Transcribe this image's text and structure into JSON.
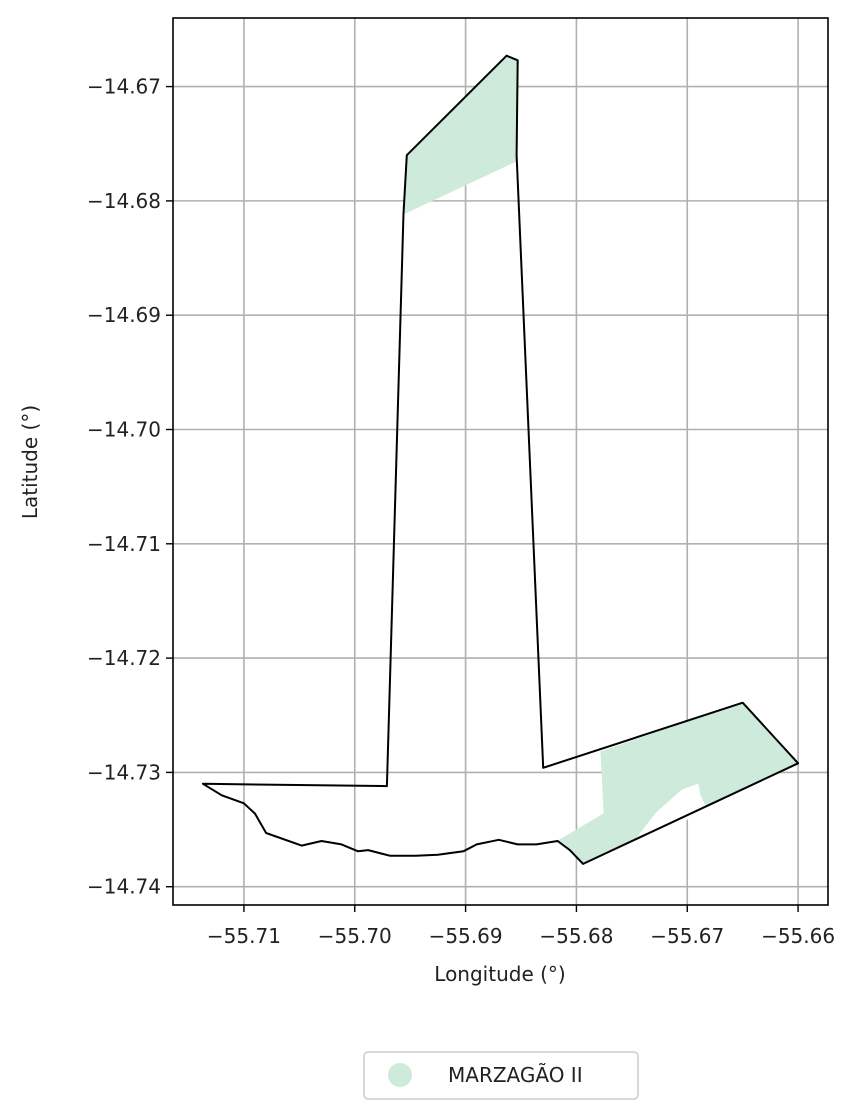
{
  "chart_data": {
    "type": "map",
    "xlabel": "Longitude (°)",
    "ylabel": "Latitude (°)",
    "xlim": [
      -55.7164,
      -55.6573
    ],
    "ylim": [
      -14.7416,
      -14.664
    ],
    "grid": true,
    "x_ticks": [
      -55.71,
      -55.7,
      -55.69,
      -55.68,
      -55.67,
      -55.66
    ],
    "x_tick_labels": [
      "−55.71",
      "−55.70",
      "−55.69",
      "−55.68",
      "−55.67",
      "−55.66"
    ],
    "y_ticks": [
      -14.67,
      -14.68,
      -14.69,
      -14.7,
      -14.71,
      -14.72,
      -14.73,
      -14.74
    ],
    "y_tick_labels": [
      "−14.67",
      "−14.68",
      "−14.69",
      "−14.70",
      "−14.71",
      "−14.72",
      "−14.73",
      "−14.74"
    ],
    "boundary": [
      [
        -55.6953,
        -14.676
      ],
      [
        -55.6863,
        -14.6673
      ],
      [
        -55.6853,
        -14.6677
      ],
      [
        -55.6854,
        -14.676
      ],
      [
        -55.683,
        -14.7296
      ],
      [
        -55.665,
        -14.7239
      ],
      [
        -55.66,
        -14.7292
      ],
      [
        -55.6794,
        -14.738
      ],
      [
        -55.6806,
        -14.7368
      ],
      [
        -55.6817,
        -14.736
      ],
      [
        -55.6836,
        -14.7363
      ],
      [
        -55.6853,
        -14.7363
      ],
      [
        -55.687,
        -14.7359
      ],
      [
        -55.689,
        -14.7363
      ],
      [
        -55.6902,
        -14.7369
      ],
      [
        -55.6925,
        -14.7372
      ],
      [
        -55.6945,
        -14.7373
      ],
      [
        -55.6968,
        -14.7373
      ],
      [
        -55.6988,
        -14.7368
      ],
      [
        -55.6997,
        -14.7369
      ],
      [
        -55.7012,
        -14.7363
      ],
      [
        -55.703,
        -14.736
      ],
      [
        -55.7048,
        -14.7364
      ],
      [
        -55.708,
        -14.7353
      ],
      [
        -55.709,
        -14.7336
      ],
      [
        -55.71,
        -14.7327
      ],
      [
        -55.712,
        -14.732
      ],
      [
        -55.7137,
        -14.731
      ],
      [
        -55.6971,
        -14.7312
      ],
      [
        -55.6956,
        -14.6811
      ],
      [
        -55.6953,
        -14.676
      ]
    ],
    "series": [
      {
        "name": "MARZAGÃO II",
        "color": "#cdeadb",
        "polygons": [
          [
            [
              -55.6953,
              -14.676
            ],
            [
              -55.6863,
              -14.6673
            ],
            [
              -55.6853,
              -14.6677
            ],
            [
              -55.6854,
              -14.6765
            ],
            [
              -55.6955,
              -14.6811
            ]
          ],
          [
            [
              -55.6778,
              -14.7282
            ],
            [
              -55.665,
              -14.7239
            ],
            [
              -55.66,
              -14.7292
            ],
            [
              -55.6794,
              -14.738
            ],
            [
              -55.6806,
              -14.7368
            ],
            [
              -55.6817,
              -14.736
            ],
            [
              -55.6775,
              -14.7336
            ]
          ],
          [
            [
              -55.6775,
              -14.7336
            ],
            [
              -55.6794,
              -14.738
            ],
            [
              -55.6745,
              -14.7356
            ]
          ]
        ],
        "holes": [
          [
            [
              -55.6745,
              -14.7356
            ],
            [
              -55.6728,
              -14.7335
            ],
            [
              -55.6705,
              -14.7315
            ],
            [
              -55.669,
              -14.731
            ],
            [
              -55.6688,
              -14.732
            ],
            [
              -55.668,
              -14.7336
            ],
            [
              -55.671,
              -14.7344
            ]
          ]
        ]
      }
    ],
    "legend": {
      "placement": "bottom-center",
      "entries": [
        {
          "label": "MARZAGÃO II",
          "color": "#cdeadb"
        }
      ]
    }
  }
}
